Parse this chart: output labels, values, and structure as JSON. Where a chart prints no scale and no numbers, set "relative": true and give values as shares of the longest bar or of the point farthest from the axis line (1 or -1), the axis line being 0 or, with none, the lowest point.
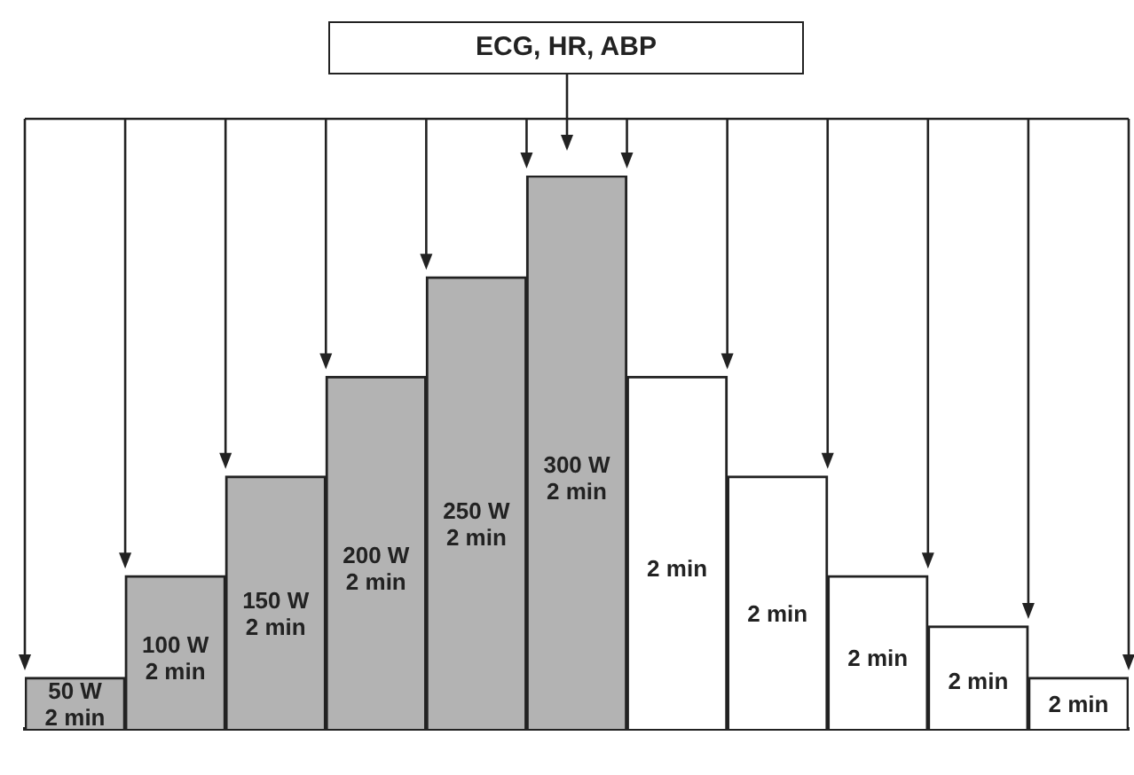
{
  "chart_data": {
    "type": "bar",
    "title": "ECG, HR, ABP",
    "relative": true,
    "categories": [
      null,
      null,
      null,
      null,
      null,
      null,
      null,
      null,
      null,
      null,
      null
    ],
    "values": [
      0.093,
      0.277,
      0.457,
      0.637,
      0.817,
      1,
      0.637,
      0.457,
      0.277,
      0.186,
      0.093
    ],
    "colors": [
      "#b3b3b3",
      "#b3b3b3",
      "#b3b3b3",
      "#b3b3b3",
      "#b3b3b3",
      "#b3b3b3",
      "#ffffff",
      "#ffffff",
      "#ffffff",
      "#ffffff",
      "#ffffff"
    ],
    "annotations": [
      "50 W\n2 min",
      "100 W\n2 min",
      "150 W\n2 min",
      "200 W\n2 min",
      "250 W\n2 min",
      "300 W\n2 min",
      "2 min",
      "2 min",
      "2 min",
      "2 min",
      "2 min"
    ]
  }
}
